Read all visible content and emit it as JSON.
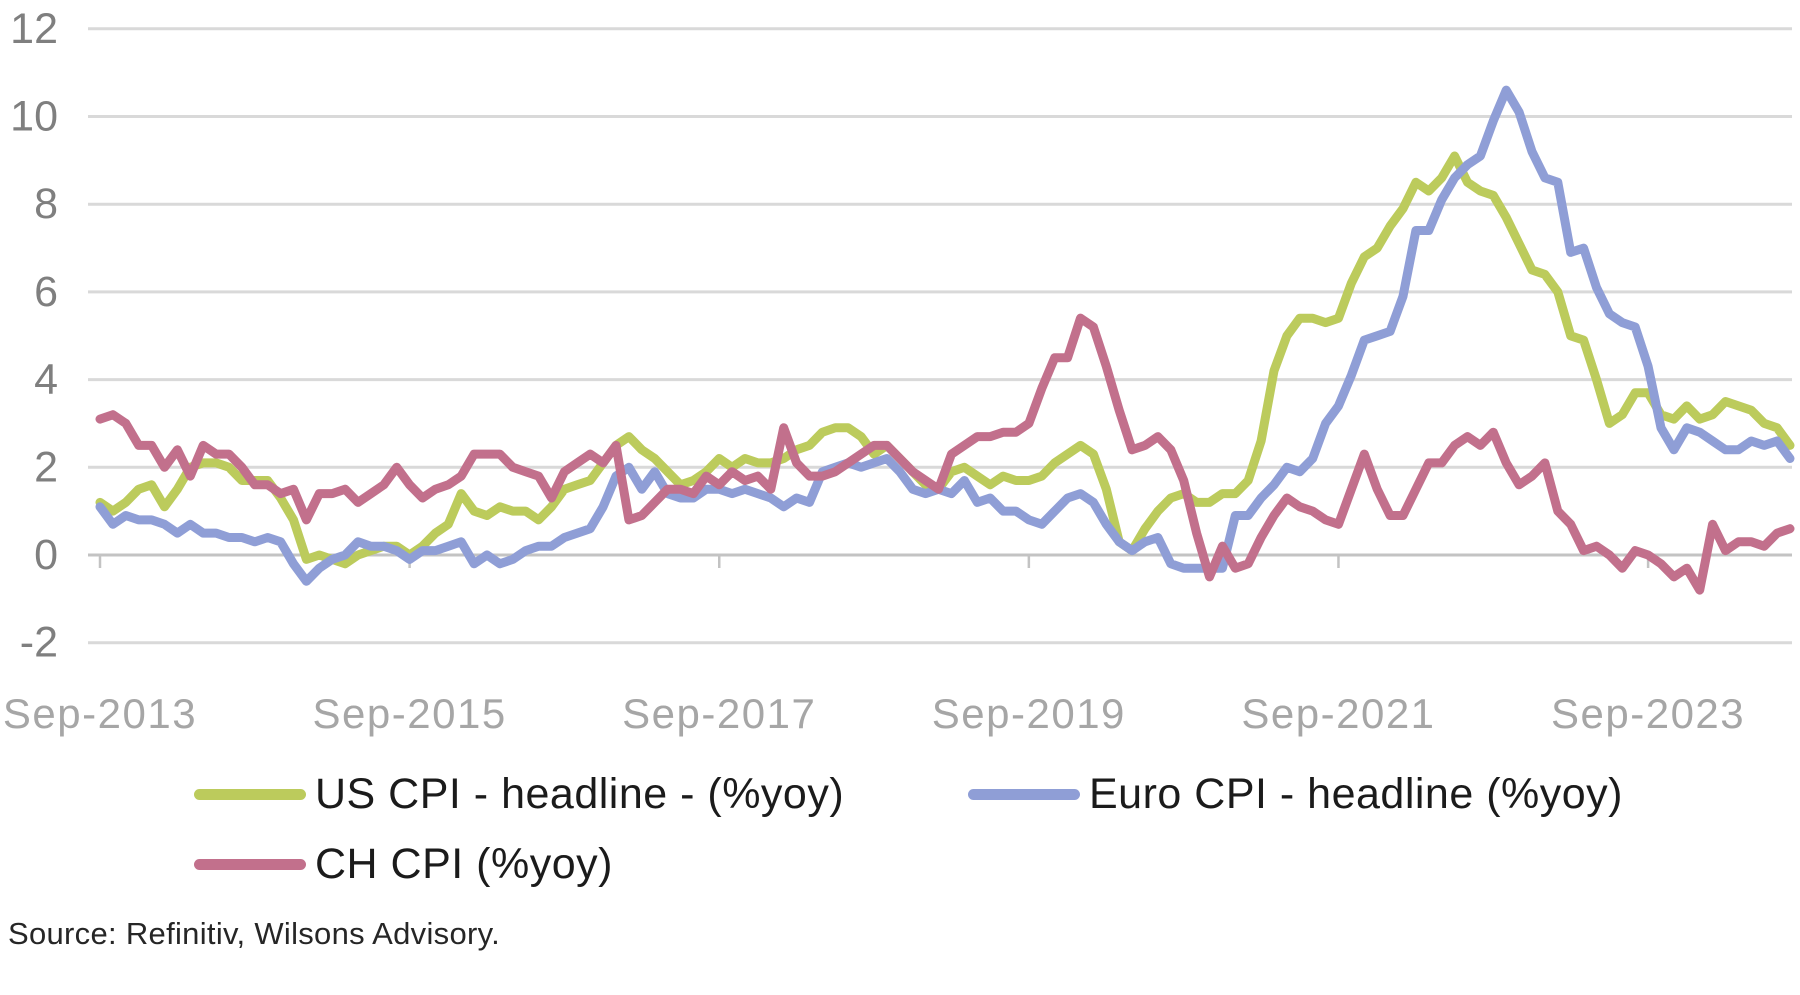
{
  "chart_data": {
    "type": "line",
    "title": "",
    "x_unit": "month",
    "start_month": "Sep-2013",
    "end_month": "Aug-2024",
    "n_points": 132,
    "ylim": [
      -2,
      12
    ],
    "y_ticks": [
      -2,
      0,
      2,
      4,
      6,
      8,
      10,
      12
    ],
    "x_ticks": [
      {
        "label": "Sep-2013",
        "month_index": 0
      },
      {
        "label": "Sep-2015",
        "month_index": 24
      },
      {
        "label": "Sep-2017",
        "month_index": 48
      },
      {
        "label": "Sep-2019",
        "month_index": 72
      },
      {
        "label": "Sep-2021",
        "month_index": 96
      },
      {
        "label": "Sep-2023",
        "month_index": 120
      }
    ],
    "grid": "horizontal",
    "legend_position": "bottom",
    "axis_colors": {
      "gridline": "#d9d9d9",
      "axis_line": "#c3c3c3",
      "y_label": "#7f7f7f",
      "x_label": "#a6a6a6"
    },
    "series": [
      {
        "name": "US CPI - headline - (%yoy)",
        "color": "#bccb5c",
        "values": [
          1.2,
          1.0,
          1.2,
          1.5,
          1.6,
          1.1,
          1.5,
          2.0,
          2.1,
          2.1,
          2.0,
          1.7,
          1.7,
          1.7,
          1.3,
          0.8,
          -0.1,
          0.0,
          -0.1,
          -0.2,
          0.0,
          0.1,
          0.2,
          0.2,
          0.0,
          0.2,
          0.5,
          0.7,
          1.4,
          1.0,
          0.9,
          1.1,
          1.0,
          1.0,
          0.8,
          1.1,
          1.5,
          1.6,
          1.7,
          2.1,
          2.5,
          2.7,
          2.4,
          2.2,
          1.9,
          1.6,
          1.7,
          1.9,
          2.2,
          2.0,
          2.2,
          2.1,
          2.1,
          2.2,
          2.4,
          2.5,
          2.8,
          2.9,
          2.9,
          2.7,
          2.3,
          2.5,
          2.2,
          1.9,
          1.6,
          1.5,
          1.9,
          2.0,
          1.8,
          1.6,
          1.8,
          1.7,
          1.7,
          1.8,
          2.1,
          2.3,
          2.5,
          2.3,
          1.5,
          0.3,
          0.1,
          0.6,
          1.0,
          1.3,
          1.4,
          1.2,
          1.2,
          1.4,
          1.4,
          1.7,
          2.6,
          4.2,
          5.0,
          5.4,
          5.4,
          5.3,
          5.4,
          6.2,
          6.8,
          7.0,
          7.5,
          7.9,
          8.5,
          8.3,
          8.6,
          9.1,
          8.5,
          8.3,
          8.2,
          7.7,
          7.1,
          6.5,
          6.4,
          6.0,
          5.0,
          4.9,
          4.0,
          3.0,
          3.2,
          3.7,
          3.7,
          3.2,
          3.1,
          3.4,
          3.1,
          3.2,
          3.5,
          3.4,
          3.3,
          3.0,
          2.9,
          2.5
        ]
      },
      {
        "name": "Euro CPI - headline (%yoy)",
        "color": "#8f9ed6",
        "values": [
          1.1,
          0.7,
          0.9,
          0.8,
          0.8,
          0.7,
          0.5,
          0.7,
          0.5,
          0.5,
          0.4,
          0.4,
          0.3,
          0.4,
          0.3,
          -0.2,
          -0.6,
          -0.3,
          -0.1,
          0.0,
          0.3,
          0.2,
          0.2,
          0.1,
          -0.1,
          0.1,
          0.1,
          0.2,
          0.3,
          -0.2,
          0.0,
          -0.2,
          -0.1,
          0.1,
          0.2,
          0.2,
          0.4,
          0.5,
          0.6,
          1.1,
          1.8,
          2.0,
          1.5,
          1.9,
          1.4,
          1.3,
          1.3,
          1.5,
          1.5,
          1.4,
          1.5,
          1.4,
          1.3,
          1.1,
          1.3,
          1.2,
          1.9,
          2.0,
          2.1,
          2.0,
          2.1,
          2.2,
          1.9,
          1.5,
          1.4,
          1.5,
          1.4,
          1.7,
          1.2,
          1.3,
          1.0,
          1.0,
          0.8,
          0.7,
          1.0,
          1.3,
          1.4,
          1.2,
          0.7,
          0.3,
          0.1,
          0.3,
          0.4,
          -0.2,
          -0.3,
          -0.3,
          -0.3,
          -0.3,
          0.9,
          0.9,
          1.3,
          1.6,
          2.0,
          1.9,
          2.2,
          3.0,
          3.4,
          4.1,
          4.9,
          5.0,
          5.1,
          5.9,
          7.4,
          7.4,
          8.1,
          8.6,
          8.9,
          9.1,
          9.9,
          10.6,
          10.1,
          9.2,
          8.6,
          8.5,
          6.9,
          7.0,
          6.1,
          5.5,
          5.3,
          5.2,
          4.3,
          2.9,
          2.4,
          2.9,
          2.8,
          2.6,
          2.4,
          2.4,
          2.6,
          2.5,
          2.6,
          2.2
        ]
      },
      {
        "name": "CH CPI (%yoy)",
        "color": "#c2708c",
        "values": [
          3.1,
          3.2,
          3.0,
          2.5,
          2.5,
          2.0,
          2.4,
          1.8,
          2.5,
          2.3,
          2.3,
          2.0,
          1.6,
          1.6,
          1.4,
          1.5,
          0.8,
          1.4,
          1.4,
          1.5,
          1.2,
          1.4,
          1.6,
          2.0,
          1.6,
          1.3,
          1.5,
          1.6,
          1.8,
          2.3,
          2.3,
          2.3,
          2.0,
          1.9,
          1.8,
          1.3,
          1.9,
          2.1,
          2.3,
          2.1,
          2.5,
          0.8,
          0.9,
          1.2,
          1.5,
          1.5,
          1.4,
          1.8,
          1.6,
          1.9,
          1.7,
          1.8,
          1.5,
          2.9,
          2.1,
          1.8,
          1.8,
          1.9,
          2.1,
          2.3,
          2.5,
          2.5,
          2.2,
          1.9,
          1.7,
          1.5,
          2.3,
          2.5,
          2.7,
          2.7,
          2.8,
          2.8,
          3.0,
          3.8,
          4.5,
          4.5,
          5.4,
          5.2,
          4.3,
          3.3,
          2.4,
          2.5,
          2.7,
          2.4,
          1.7,
          0.5,
          -0.5,
          0.2,
          -0.3,
          -0.2,
          0.4,
          0.9,
          1.3,
          1.1,
          1.0,
          0.8,
          0.7,
          1.5,
          2.3,
          1.5,
          0.9,
          0.9,
          1.5,
          2.1,
          2.1,
          2.5,
          2.7,
          2.5,
          2.8,
          2.1,
          1.6,
          1.8,
          2.1,
          1.0,
          0.7,
          0.1,
          0.2,
          0.0,
          -0.3,
          0.1,
          0.0,
          -0.2,
          -0.5,
          -0.3,
          -0.8,
          0.7,
          0.1,
          0.3,
          0.3,
          0.2,
          0.5,
          0.6
        ]
      }
    ]
  },
  "legend": {
    "us_label": "US CPI - headline - (%yoy)",
    "euro_label": "Euro CPI - headline (%yoy)",
    "ch_label": "CH CPI (%yoy)"
  },
  "source": {
    "text": "Source: Refinitiv, Wilsons Advisory."
  }
}
